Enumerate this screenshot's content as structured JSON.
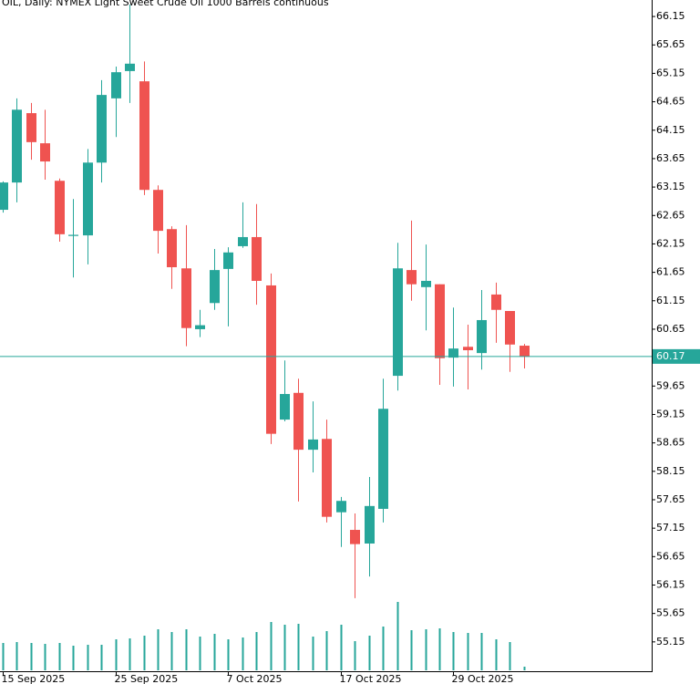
{
  "chart_data": {
    "type": "candlestick",
    "title": "OIL, Daily:  NYMEX Light Sweet Crude Oil 1000 Barrels continuous",
    "categories": [
      "15 Sep 2025",
      null,
      null,
      null,
      null,
      null,
      null,
      null,
      "25 Sep 2025",
      null,
      null,
      null,
      null,
      null,
      null,
      null,
      "7 Oct 2025",
      null,
      null,
      null,
      null,
      null,
      null,
      null,
      "17 Oct 2025",
      null,
      null,
      null,
      null,
      null,
      null,
      null,
      "29 Oct 2025",
      null,
      null,
      null,
      null,
      null
    ],
    "open": [
      62.75,
      63.23,
      64.45,
      63.92,
      63.26,
      62.29,
      62.3,
      63.58,
      64.71,
      65.19,
      65.01,
      63.1,
      62.41,
      61.72,
      60.65,
      61.11,
      61.71,
      62.11,
      62.27,
      61.42,
      59.06,
      59.53,
      58.53,
      58.72,
      57.43,
      57.12,
      56.88,
      57.49,
      59.83,
      61.69,
      61.39,
      61.44,
      60.15,
      60.34,
      60.23,
      61.26,
      60.97,
      60.36
    ],
    "high": [
      63.25,
      64.71,
      64.63,
      64.51,
      63.3,
      62.94,
      63.82,
      65.03,
      65.27,
      66.36,
      65.36,
      63.18,
      62.46,
      62.48,
      60.99,
      62.06,
      62.09,
      62.88,
      62.85,
      61.63,
      60.1,
      59.78,
      59.38,
      59.06,
      57.7,
      57.41,
      58.05,
      59.78,
      62.17,
      62.56,
      62.14,
      61.44,
      61.03,
      60.73,
      61.34,
      61.47,
      60.97,
      60.39
    ],
    "low": [
      62.7,
      62.88,
      63.63,
      63.28,
      62.19,
      61.56,
      61.79,
      63.23,
      64.03,
      64.63,
      63.01,
      61.98,
      61.36,
      60.35,
      60.51,
      60.99,
      60.7,
      62.08,
      61.08,
      58.63,
      59.03,
      57.62,
      58.13,
      57.25,
      56.82,
      55.92,
      56.3,
      57.25,
      59.57,
      61.15,
      60.63,
      59.67,
      59.64,
      59.59,
      59.94,
      60.41,
      59.9,
      59.96
    ],
    "close": [
      63.23,
      64.51,
      63.94,
      63.6,
      62.32,
      62.31,
      63.58,
      64.77,
      65.17,
      65.32,
      63.1,
      62.38,
      61.74,
      60.67,
      60.72,
      61.69,
      62.0,
      62.27,
      61.5,
      58.81,
      59.51,
      58.53,
      58.71,
      57.35,
      57.63,
      56.87,
      57.54,
      59.25,
      61.72,
      61.44,
      61.5,
      60.14,
      60.31,
      60.28,
      60.81,
      60.99,
      60.38,
      60.17
    ],
    "volume": [
      30,
      31,
      30,
      29,
      30,
      27,
      28,
      28,
      34,
      35,
      38,
      45,
      42,
      45,
      37,
      40,
      34,
      36,
      42,
      53,
      50,
      51,
      37,
      43,
      50,
      32,
      38,
      48,
      75,
      44,
      45,
      46,
      42,
      41,
      41,
      34,
      31,
      4
    ],
    "up_color": "#26a69a",
    "down_color": "#ef5350",
    "last_price": 60.17,
    "ylim": [
      54.65,
      66.44
    ],
    "yticks": [
      55.15,
      55.65,
      56.15,
      56.65,
      57.15,
      57.65,
      58.15,
      58.65,
      59.15,
      59.65,
      60.15,
      60.65,
      61.15,
      61.65,
      62.15,
      62.65,
      63.15,
      63.65,
      64.15,
      64.65,
      65.15,
      65.65,
      66.15
    ]
  }
}
